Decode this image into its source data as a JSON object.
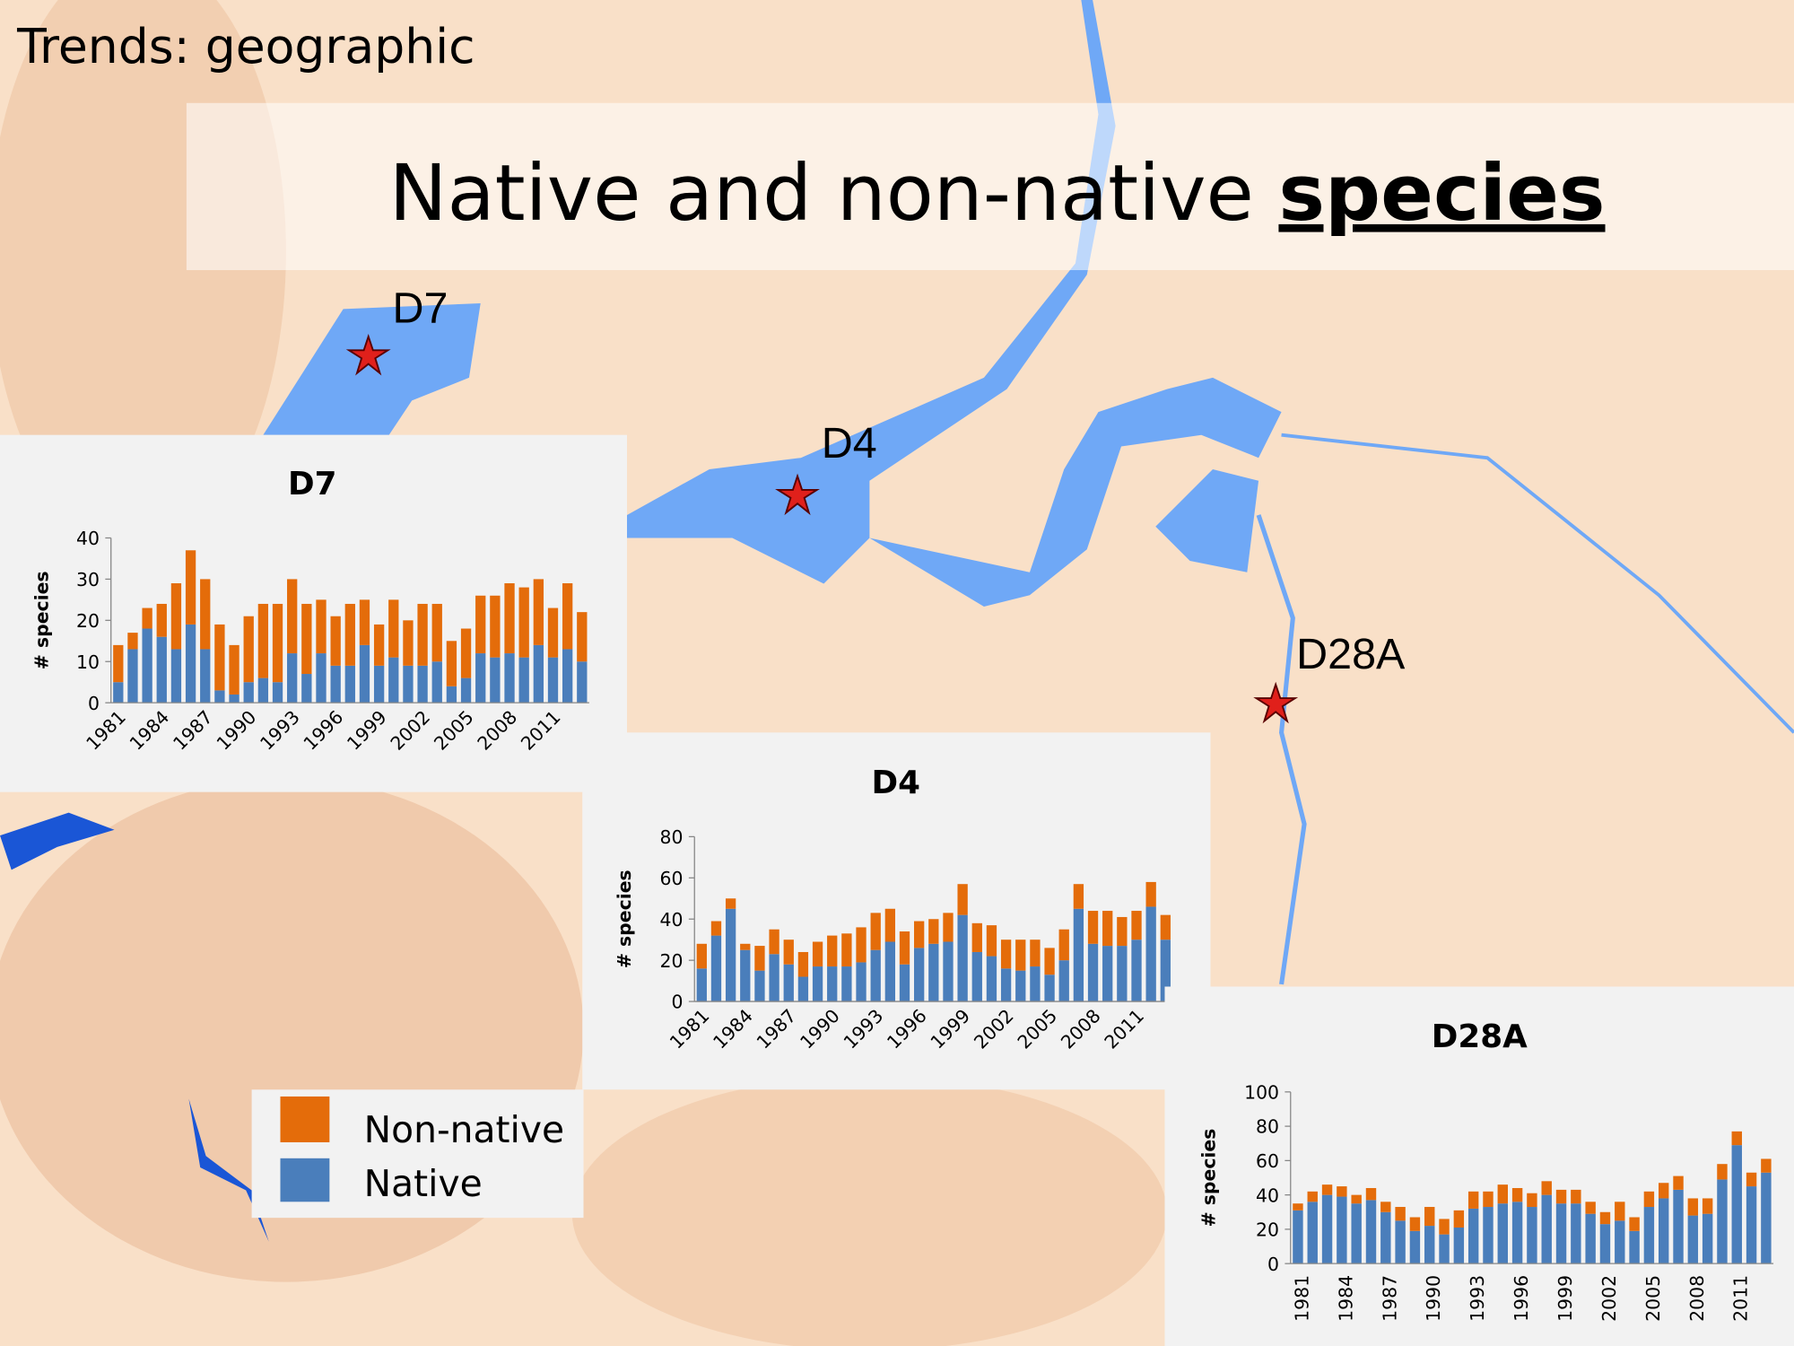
{
  "slide_title": "Trends: geographic",
  "heading": {
    "text": "Native and non-native ",
    "emphasis": "species"
  },
  "map_labels": [
    "D7",
    "D4",
    "D28A"
  ],
  "chart_data": [
    {
      "type": "bar",
      "stacked": true,
      "title": "D7",
      "ylabel": "# species",
      "categories": [
        "1981",
        null,
        null,
        "1984",
        null,
        null,
        "1987",
        null,
        null,
        "1990",
        null,
        null,
        "1993",
        null,
        null,
        "1996",
        null,
        null,
        "1999",
        null,
        null,
        "2002",
        null,
        null,
        "2005",
        null,
        null,
        "2008",
        null,
        null,
        "2011",
        null,
        null
      ],
      "series": [
        {
          "name": "Native",
          "color": "#4a7ebb",
          "values": [
            5,
            13,
            18,
            16,
            13,
            19,
            13,
            3,
            2,
            5,
            6,
            5,
            12,
            7,
            12,
            9,
            9,
            14,
            9,
            11,
            9,
            9,
            10,
            4,
            6,
            12,
            11,
            12,
            11,
            14,
            11,
            13,
            10
          ]
        },
        {
          "name": "Non-native",
          "color": "#e46c0a",
          "values": [
            9,
            4,
            5,
            8,
            16,
            18,
            17,
            16,
            12,
            16,
            18,
            19,
            18,
            17,
            13,
            12,
            15,
            11,
            10,
            14,
            11,
            15,
            14,
            11,
            12,
            14,
            15,
            17,
            17,
            16,
            12,
            16,
            12
          ]
        }
      ],
      "ylim": [
        0,
        40
      ],
      "yticks": [
        0,
        10,
        20,
        30,
        40
      ]
    },
    {
      "type": "bar",
      "stacked": true,
      "title": "D4",
      "ylabel": "# species",
      "categories": [
        "1981",
        null,
        null,
        "1984",
        null,
        null,
        "1987",
        null,
        null,
        "1990",
        null,
        null,
        "1993",
        null,
        null,
        "1996",
        null,
        null,
        "1999",
        null,
        null,
        "2002",
        null,
        null,
        "2005",
        null,
        null,
        "2008",
        null,
        null,
        "2011",
        null,
        null
      ],
      "series": [
        {
          "name": "Native",
          "color": "#4a7ebb",
          "values": [
            16,
            32,
            45,
            25,
            15,
            23,
            18,
            12,
            17,
            17,
            17,
            19,
            25,
            29,
            18,
            26,
            28,
            29,
            42,
            24,
            22,
            16,
            15,
            17,
            13,
            20,
            45,
            28,
            27,
            27,
            30,
            46,
            30
          ]
        },
        {
          "name": "Non-native",
          "color": "#e46c0a",
          "values": [
            12,
            7,
            5,
            3,
            12,
            12,
            12,
            12,
            12,
            15,
            16,
            17,
            18,
            16,
            16,
            13,
            12,
            14,
            15,
            14,
            15,
            14,
            15,
            13,
            13,
            15,
            12,
            16,
            17,
            14,
            14,
            12,
            12
          ]
        }
      ],
      "ylim": [
        0,
        80
      ],
      "yticks": [
        0,
        20,
        40,
        60,
        80
      ]
    },
    {
      "type": "bar",
      "stacked": true,
      "title": "D28A",
      "ylabel": "# species",
      "categories": [
        "1981",
        null,
        null,
        "1984",
        null,
        null,
        "1987",
        null,
        null,
        "1990",
        null,
        null,
        "1993",
        null,
        null,
        "1996",
        null,
        null,
        "1999",
        null,
        null,
        "2002",
        null,
        null,
        "2005",
        null,
        null,
        "2008",
        null,
        null,
        "2011",
        null,
        null
      ],
      "series": [
        {
          "name": "Native",
          "color": "#4a7ebb",
          "values": [
            31,
            36,
            40,
            39,
            35,
            37,
            30,
            25,
            19,
            22,
            17,
            21,
            32,
            33,
            35,
            36,
            33,
            40,
            35,
            35,
            29,
            23,
            25,
            19,
            33,
            38,
            43,
            28,
            29,
            49,
            69,
            45,
            53
          ]
        },
        {
          "name": "Non-native",
          "color": "#e46c0a",
          "values": [
            4,
            6,
            6,
            6,
            5,
            7,
            6,
            8,
            8,
            11,
            9,
            10,
            10,
            9,
            11,
            8,
            8,
            8,
            8,
            8,
            7,
            7,
            11,
            8,
            9,
            9,
            8,
            10,
            9,
            9,
            8,
            8,
            8
          ]
        }
      ],
      "ylim": [
        0,
        100
      ],
      "yticks": [
        0,
        20,
        40,
        60,
        80,
        100
      ]
    }
  ]
}
